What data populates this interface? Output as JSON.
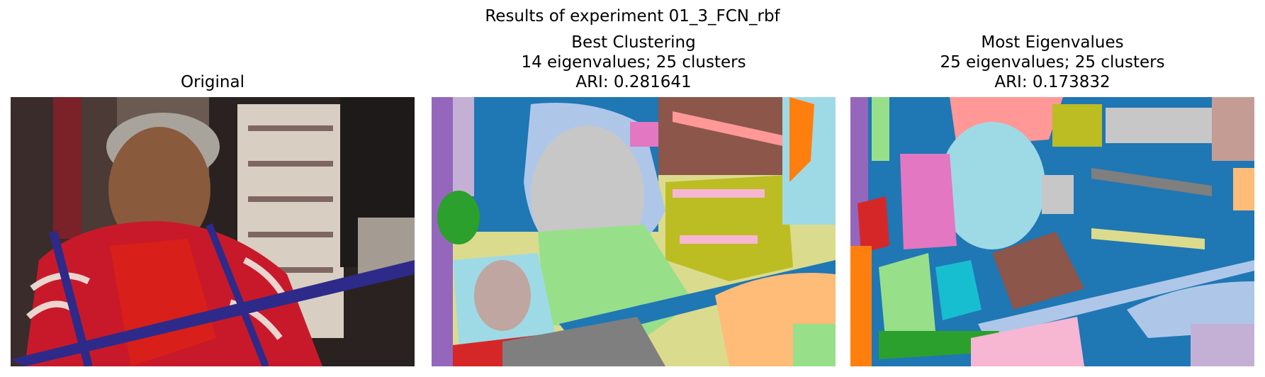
{
  "figure": {
    "suptitle": "Results of experiment 01_3_FCN_rbf"
  },
  "panels": [
    {
      "title_lines": [
        "Original"
      ],
      "image": "photo of an elderly woman weaving on a backstrap loom, wearing a red and white embroidered blouse, textiles hanging behind her"
    },
    {
      "title_lines": [
        "Best Clustering",
        "14 eigenvalues; 25 clusters",
        "ARI: 0.281641"
      ],
      "image": "segmentation map with colored cluster regions"
    },
    {
      "title_lines": [
        "Most Eigenvalues",
        "25 eigenvalues; 25 clusters",
        "ARI: 0.173832"
      ],
      "image": "segmentation map with colored cluster regions, predominantly blue"
    }
  ],
  "colors": {
    "tab_blue": "#1f77b4",
    "tab_lightblue": "#aec7e8",
    "tab_orange": "#ff7f0e",
    "tab_peach": "#ffbb78",
    "tab_green": "#2ca02c",
    "tab_lightgreen": "#98df8a",
    "tab_red": "#d62728",
    "tab_pink": "#ff9896",
    "tab_purple": "#9467bd",
    "tab_lavender": "#c5b0d5",
    "tab_brown": "#8c564b",
    "tab_tan": "#c49c94",
    "tab_magenta": "#e377c2",
    "tab_lightpink": "#f7b6d2",
    "tab_gray": "#7f7f7f",
    "tab_lightgray": "#c7c7c7",
    "tab_olive": "#bcbd22",
    "tab_khaki": "#dbdb8d",
    "tab_cyan": "#17becf",
    "tab_lightcyan": "#9edae5"
  }
}
